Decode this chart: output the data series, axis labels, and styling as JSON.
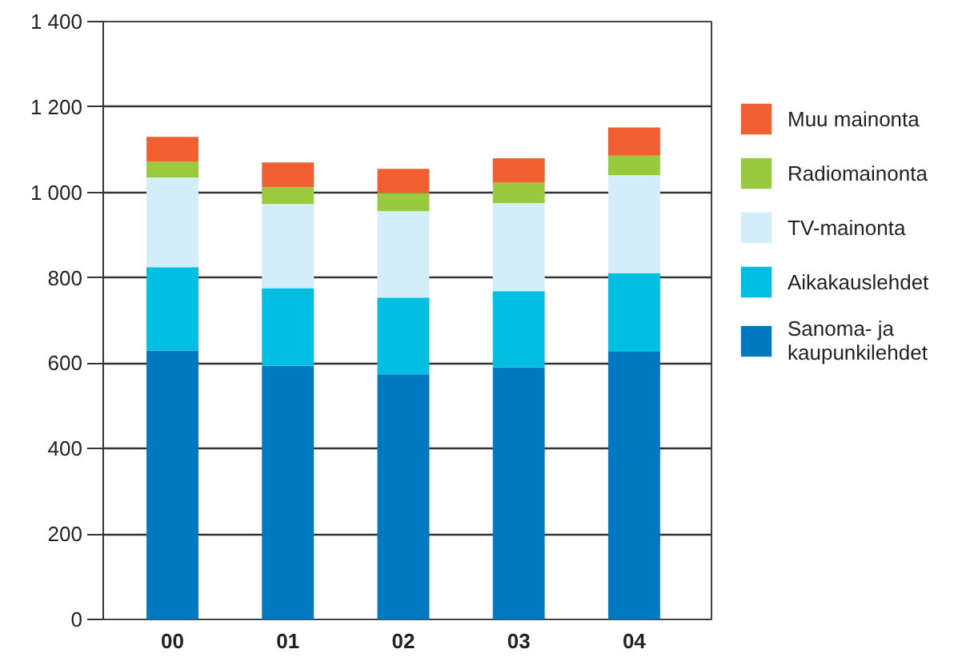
{
  "chart_data": {
    "type": "bar",
    "stacked": true,
    "categories": [
      "00",
      "01",
      "02",
      "03",
      "04"
    ],
    "series": [
      {
        "name": "Sanoma- ja kaupunkilehdet",
        "color": "#0079c1",
        "values": [
          630,
          594,
          574,
          590,
          627
        ]
      },
      {
        "name": "Aikakauslehdet",
        "color": "#00bfe3",
        "values": [
          195,
          182,
          180,
          179,
          184
        ]
      },
      {
        "name": "TV-mainonta",
        "color": "#d4eef9",
        "values": [
          210,
          197,
          202,
          206,
          229
        ]
      },
      {
        "name": "Radiomainonta",
        "color": "#99c93c",
        "values": [
          37,
          39,
          43,
          48,
          46
        ]
      },
      {
        "name": "Muu mainonta",
        "color": "#f15f31",
        "values": [
          58,
          58,
          56,
          57,
          66
        ]
      }
    ],
    "ylim": [
      0,
      1400
    ],
    "yticks": [
      0,
      200,
      400,
      600,
      800,
      {
        "value": 1000,
        "label": "1 000"
      },
      {
        "value": 1200,
        "label": "1 200"
      },
      {
        "value": 1400,
        "label": "1 400"
      }
    ],
    "grid": "y",
    "legend": "right"
  }
}
